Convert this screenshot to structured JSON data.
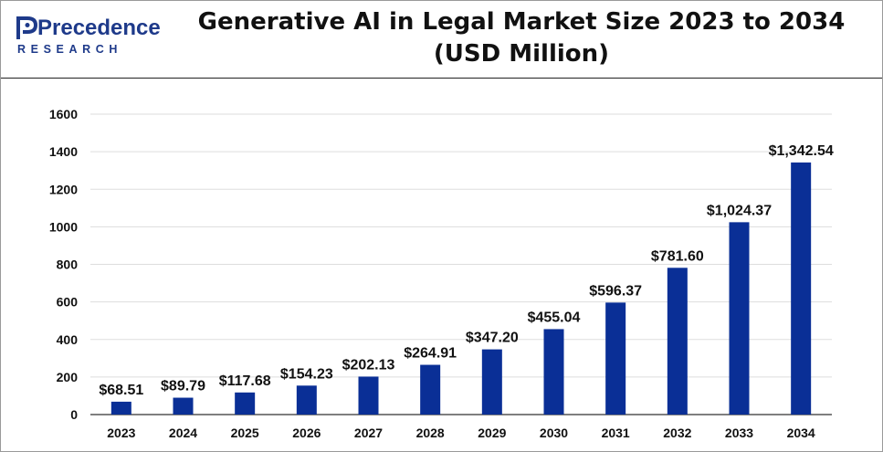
{
  "logo": {
    "word": "Precedence",
    "sub": "RESEARCH"
  },
  "colors": {
    "bar": "#0a2f96",
    "grid": "#dddddd",
    "axis": "#333333"
  },
  "chart_data": {
    "type": "bar",
    "title_line1": "Generative AI in Legal Market Size 2023 to 2034",
    "title_line2": "(USD Million)",
    "categories": [
      "2023",
      "2024",
      "2025",
      "2026",
      "2027",
      "2028",
      "2029",
      "2030",
      "2031",
      "2032",
      "2033",
      "2034"
    ],
    "values": [
      68.51,
      89.79,
      117.68,
      154.23,
      202.13,
      264.91,
      347.2,
      455.04,
      596.37,
      781.6,
      1024.37,
      1342.54
    ],
    "data_labels": [
      "$68.51",
      "$89.79",
      "$117.68",
      "$154.23",
      "$202.13",
      "$264.91",
      "$347.20",
      "$455.04",
      "$596.37",
      "$781.60",
      "$1,024.37",
      "$1,342.54"
    ],
    "y_ticks": [
      0,
      200,
      400,
      600,
      800,
      1000,
      1200,
      1400,
      1600
    ],
    "ylim": [
      0,
      1600
    ],
    "grid": true
  }
}
